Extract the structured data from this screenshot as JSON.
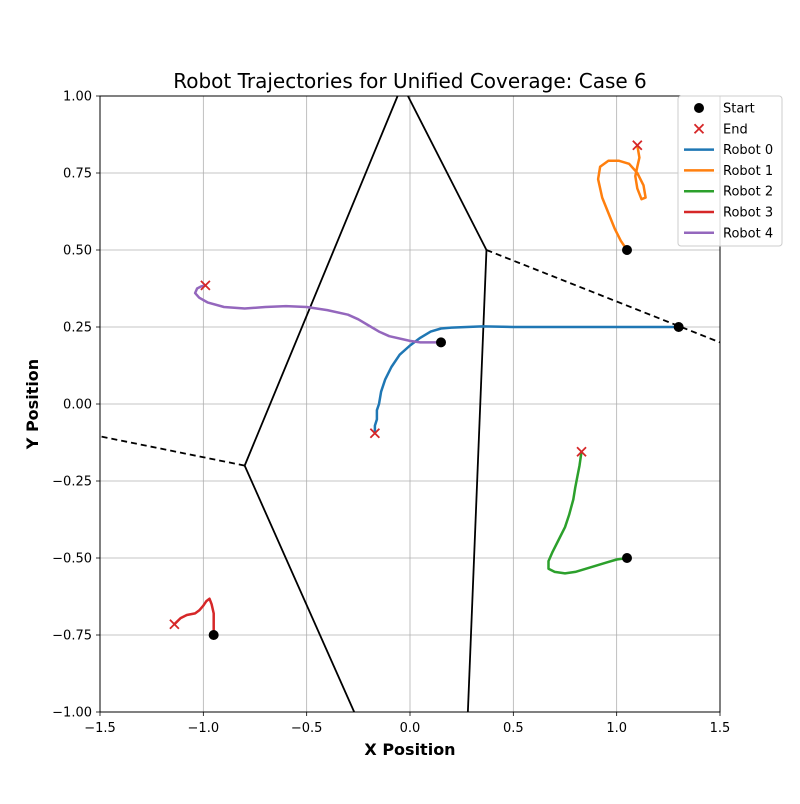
{
  "chart_data": {
    "type": "line",
    "title": "Robot Trajectories for Unified Coverage: Case 6",
    "xlabel": "X Position",
    "ylabel": "Y Position",
    "xlim": [
      -1.5,
      1.5
    ],
    "ylim": [
      -1.0,
      1.0
    ],
    "grid": true,
    "x_ticks": [
      -1.5,
      -1.0,
      -0.5,
      0.0,
      0.5,
      1.0,
      1.5
    ],
    "x_tick_labels": [
      "−1.5",
      "−1.0",
      "−0.5",
      "0.0",
      "0.5",
      "1.0",
      "1.5"
    ],
    "y_ticks": [
      -1.0,
      -0.75,
      -0.5,
      -0.25,
      0.0,
      0.25,
      0.5,
      0.75,
      1.0
    ],
    "y_tick_labels": [
      "−1.00",
      "−0.75",
      "−0.50",
      "−0.25",
      "0.00",
      "0.25",
      "0.50",
      "0.75",
      "1.00"
    ],
    "legend": {
      "placement": "upper-right-outside",
      "start_label": "Start",
      "end_label": "End",
      "start_color": "#000000",
      "end_color": "#d62728"
    },
    "series": [
      {
        "name": "Robot 0",
        "color": "#1f77b4",
        "start": [
          1.3,
          0.25
        ],
        "end": [
          -0.17,
          -0.095
        ],
        "x": [
          1.3,
          1.1,
          0.9,
          0.7,
          0.5,
          0.35,
          0.2,
          0.15,
          0.1,
          0.05,
          0.0,
          -0.05,
          -0.09,
          -0.12,
          -0.14,
          -0.15,
          -0.16,
          -0.16,
          -0.17,
          -0.17
        ],
        "y": [
          0.25,
          0.25,
          0.25,
          0.25,
          0.25,
          0.252,
          0.248,
          0.245,
          0.235,
          0.215,
          0.19,
          0.16,
          0.12,
          0.08,
          0.04,
          0.0,
          -0.02,
          -0.05,
          -0.07,
          -0.095
        ]
      },
      {
        "name": "Robot 1",
        "color": "#ff7f0e",
        "start": [
          1.05,
          0.5
        ],
        "end": [
          1.1,
          0.84
        ],
        "x": [
          1.05,
          1.02,
          0.99,
          0.96,
          0.93,
          0.91,
          0.92,
          0.96,
          1.01,
          1.06,
          1.1,
          1.13,
          1.14,
          1.12,
          1.1,
          1.09,
          1.1,
          1.11,
          1.1
        ],
        "y": [
          0.5,
          0.53,
          0.57,
          0.62,
          0.67,
          0.73,
          0.77,
          0.79,
          0.79,
          0.78,
          0.75,
          0.71,
          0.67,
          0.665,
          0.7,
          0.74,
          0.77,
          0.8,
          0.84
        ]
      },
      {
        "name": "Robot 2",
        "color": "#2ca02c",
        "start": [
          1.05,
          -0.5
        ],
        "end": [
          0.83,
          -0.155
        ],
        "x": [
          1.05,
          1.0,
          0.95,
          0.9,
          0.85,
          0.8,
          0.75,
          0.7,
          0.67,
          0.67,
          0.69,
          0.72,
          0.75,
          0.77,
          0.79,
          0.8,
          0.81,
          0.82,
          0.83
        ],
        "y": [
          -0.5,
          -0.505,
          -0.515,
          -0.525,
          -0.535,
          -0.545,
          -0.55,
          -0.545,
          -0.535,
          -0.51,
          -0.48,
          -0.44,
          -0.4,
          -0.36,
          -0.31,
          -0.27,
          -0.235,
          -0.2,
          -0.155
        ]
      },
      {
        "name": "Robot 3",
        "color": "#d62728",
        "start": [
          -0.95,
          -0.75
        ],
        "end": [
          -1.14,
          -0.715
        ],
        "x": [
          -0.95,
          -0.95,
          -0.95,
          -0.96,
          -0.97,
          -0.985,
          -1.0,
          -1.02,
          -1.04,
          -1.08,
          -1.11,
          -1.14
        ],
        "y": [
          -0.75,
          -0.72,
          -0.68,
          -0.65,
          -0.632,
          -0.64,
          -0.655,
          -0.67,
          -0.68,
          -0.685,
          -0.695,
          -0.715
        ]
      },
      {
        "name": "Robot 4",
        "color": "#9467bd",
        "start": [
          0.15,
          0.2
        ],
        "end": [
          -0.99,
          0.385
        ],
        "x": [
          0.15,
          0.05,
          0.0,
          -0.1,
          -0.15,
          -0.2,
          -0.25,
          -0.3,
          -0.4,
          -0.5,
          -0.6,
          -0.7,
          -0.8,
          -0.9,
          -0.98,
          -1.02,
          -1.04,
          -1.03,
          -1.01,
          -0.99
        ],
        "y": [
          0.2,
          0.2,
          0.205,
          0.22,
          0.235,
          0.255,
          0.275,
          0.29,
          0.305,
          0.315,
          0.318,
          0.315,
          0.31,
          0.315,
          0.33,
          0.345,
          0.36,
          0.375,
          0.382,
          0.385
        ]
      }
    ],
    "partition_lines": {
      "solid": [
        [
          [
            -0.06,
            1.02
          ],
          [
            -0.8,
            -0.2
          ]
        ],
        [
          [
            -0.8,
            -0.2
          ],
          [
            -0.27,
            -1.02
          ]
        ],
        [
          [
            -0.01,
            1.05
          ],
          [
            0.37,
            0.5
          ]
        ],
        [
          [
            0.37,
            0.5
          ],
          [
            0.28,
            -1.02
          ]
        ]
      ],
      "dashed": [
        [
          [
            -0.8,
            -0.2
          ],
          [
            -1.5,
            -0.105
          ]
        ],
        [
          [
            0.37,
            0.5
          ],
          [
            1.5,
            0.2
          ]
        ]
      ]
    }
  }
}
